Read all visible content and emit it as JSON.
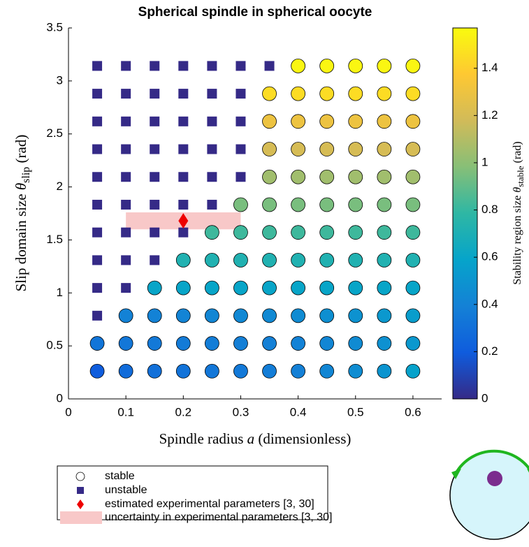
{
  "chart_data": {
    "type": "scatter",
    "title": "Spherical spindle in spherical oocyte",
    "x_label": {
      "text": "Spindle radius",
      "symbol": "a",
      "unit": "(dimensionless)"
    },
    "y_label": {
      "text": "Slip domain size",
      "symbol": "θ",
      "subscript": "slip",
      "unit": "(rad)"
    },
    "colorbar_label": {
      "text": "Stability region size",
      "symbol": "θ",
      "subscript": "stable",
      "unit": "(rad)"
    },
    "xlim": [
      0,
      0.65
    ],
    "xticks": [
      0,
      0.1,
      0.2,
      0.3,
      0.4,
      0.5,
      0.6
    ],
    "ylim": [
      0,
      3.5
    ],
    "yticks": [
      0,
      0.5,
      1,
      1.5,
      2,
      2.5,
      3,
      3.5
    ],
    "clim": [
      0,
      1.5708
    ],
    "cticks": [
      0,
      0.2,
      0.4,
      0.6,
      0.8,
      1,
      1.2,
      1.4
    ],
    "colormap": [
      "#352a87",
      "#0f5cdd",
      "#1481d6",
      "#06a4ca",
      "#2eb7a4",
      "#87bf77",
      "#d1bb59",
      "#fec832",
      "#f9fb0e"
    ],
    "series": [
      {
        "name": "stable",
        "marker": "circle",
        "x": [
          0.4,
          0.45,
          0.5,
          0.55,
          0.6,
          0.35,
          0.4,
          0.45,
          0.5,
          0.55,
          0.6,
          0.35,
          0.4,
          0.45,
          0.5,
          0.55,
          0.6,
          0.35,
          0.4,
          0.45,
          0.5,
          0.55,
          0.6,
          0.35,
          0.4,
          0.45,
          0.5,
          0.55,
          0.6,
          0.3,
          0.35,
          0.4,
          0.45,
          0.5,
          0.55,
          0.6,
          0.25,
          0.3,
          0.35,
          0.4,
          0.45,
          0.5,
          0.55,
          0.6,
          0.2,
          0.25,
          0.3,
          0.35,
          0.4,
          0.45,
          0.5,
          0.55,
          0.6,
          0.15,
          0.2,
          0.25,
          0.3,
          0.35,
          0.4,
          0.45,
          0.5,
          0.55,
          0.6,
          0.1,
          0.15,
          0.2,
          0.25,
          0.3,
          0.35,
          0.4,
          0.45,
          0.5,
          0.55,
          0.6,
          0.05,
          0.1,
          0.15,
          0.2,
          0.25,
          0.3,
          0.35,
          0.4,
          0.45,
          0.5,
          0.55,
          0.6,
          0.05,
          0.1,
          0.15,
          0.2,
          0.25,
          0.3,
          0.35,
          0.4,
          0.45,
          0.5,
          0.55,
          0.6
        ],
        "y": [
          3.1416,
          3.1416,
          3.1416,
          3.1416,
          3.1416,
          2.8798,
          2.8798,
          2.8798,
          2.8798,
          2.8798,
          2.8798,
          2.618,
          2.618,
          2.618,
          2.618,
          2.618,
          2.618,
          2.3562,
          2.3562,
          2.3562,
          2.3562,
          2.3562,
          2.3562,
          2.0944,
          2.0944,
          2.0944,
          2.0944,
          2.0944,
          2.0944,
          1.8326,
          1.8326,
          1.8326,
          1.8326,
          1.8326,
          1.8326,
          1.8326,
          1.5708,
          1.5708,
          1.5708,
          1.5708,
          1.5708,
          1.5708,
          1.5708,
          1.5708,
          1.309,
          1.309,
          1.309,
          1.309,
          1.309,
          1.309,
          1.309,
          1.309,
          1.309,
          1.0472,
          1.0472,
          1.0472,
          1.0472,
          1.0472,
          1.0472,
          1.0472,
          1.0472,
          1.0472,
          1.0472,
          0.7854,
          0.7854,
          0.7854,
          0.7854,
          0.7854,
          0.7854,
          0.7854,
          0.7854,
          0.7854,
          0.7854,
          0.7854,
          0.5236,
          0.5236,
          0.5236,
          0.5236,
          0.5236,
          0.5236,
          0.5236,
          0.5236,
          0.5236,
          0.5236,
          0.5236,
          0.5236,
          0.2618,
          0.2618,
          0.2618,
          0.2618,
          0.2618,
          0.2618,
          0.2618,
          0.2618,
          0.2618,
          0.2618,
          0.2618,
          0.2618
        ],
        "values": [
          1.55,
          1.55,
          1.55,
          1.55,
          1.55,
          1.45,
          1.45,
          1.45,
          1.45,
          1.45,
          1.45,
          1.3,
          1.3,
          1.3,
          1.3,
          1.3,
          1.3,
          1.2,
          1.2,
          1.2,
          1.2,
          1.2,
          1.2,
          1.05,
          1.05,
          1.05,
          1.05,
          1.05,
          1.05,
          0.95,
          0.95,
          0.95,
          0.95,
          0.95,
          0.95,
          0.95,
          0.82,
          0.82,
          0.82,
          0.82,
          0.82,
          0.82,
          0.82,
          0.82,
          0.72,
          0.72,
          0.72,
          0.72,
          0.72,
          0.72,
          0.72,
          0.72,
          0.72,
          0.6,
          0.6,
          0.6,
          0.6,
          0.6,
          0.6,
          0.6,
          0.6,
          0.6,
          0.6,
          0.4,
          0.4,
          0.41,
          0.42,
          0.43,
          0.44,
          0.45,
          0.47,
          0.49,
          0.52,
          0.55,
          0.33,
          0.34,
          0.35,
          0.36,
          0.37,
          0.38,
          0.39,
          0.4,
          0.42,
          0.45,
          0.48,
          0.52,
          0.2,
          0.28,
          0.3,
          0.32,
          0.34,
          0.35,
          0.37,
          0.39,
          0.42,
          0.46,
          0.5,
          0.58
        ]
      },
      {
        "name": "unstable",
        "marker": "square",
        "color": "#352a87",
        "x": [
          0.05,
          0.1,
          0.15,
          0.2,
          0.25,
          0.3,
          0.35,
          0.05,
          0.1,
          0.15,
          0.2,
          0.25,
          0.3,
          0.05,
          0.1,
          0.15,
          0.2,
          0.25,
          0.3,
          0.05,
          0.1,
          0.15,
          0.2,
          0.25,
          0.3,
          0.05,
          0.1,
          0.15,
          0.2,
          0.25,
          0.3,
          0.05,
          0.1,
          0.15,
          0.2,
          0.25,
          0.05,
          0.1,
          0.15,
          0.2,
          0.05,
          0.1,
          0.15,
          0.05,
          0.1,
          0.05
        ],
        "y": [
          3.1416,
          3.1416,
          3.1416,
          3.1416,
          3.1416,
          3.1416,
          3.1416,
          2.8798,
          2.8798,
          2.8798,
          2.8798,
          2.8798,
          2.8798,
          2.618,
          2.618,
          2.618,
          2.618,
          2.618,
          2.618,
          2.3562,
          2.3562,
          2.3562,
          2.3562,
          2.3562,
          2.3562,
          2.0944,
          2.0944,
          2.0944,
          2.0944,
          2.0944,
          2.0944,
          1.8326,
          1.8326,
          1.8326,
          1.8326,
          1.8326,
          1.5708,
          1.5708,
          1.5708,
          1.5708,
          1.309,
          1.309,
          1.309,
          1.0472,
          1.0472,
          0.7854
        ]
      }
    ],
    "uncertainty": {
      "name": "uncertainty in experimental parameters [3, 30]",
      "color": "#f8c8c8",
      "x": [
        0.1,
        0.3
      ],
      "y": [
        1.6,
        1.76
      ]
    },
    "estimate": {
      "name": "estimated experimental parameters [3, 30]",
      "color": "#ee0000",
      "x": 0.2,
      "y": 1.68
    }
  }
}
